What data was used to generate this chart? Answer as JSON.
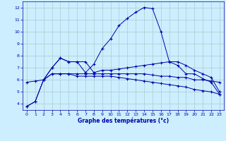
{
  "xlabel": "Graphe des températures (°c)",
  "xlim": [
    -0.5,
    23.5
  ],
  "ylim": [
    3.5,
    12.5
  ],
  "yticks": [
    4,
    5,
    6,
    7,
    8,
    9,
    10,
    11,
    12
  ],
  "xticks": [
    0,
    1,
    2,
    3,
    4,
    5,
    6,
    7,
    8,
    9,
    10,
    11,
    12,
    13,
    14,
    15,
    16,
    17,
    18,
    19,
    20,
    21,
    22,
    23
  ],
  "background_color": "#cceeff",
  "grid_color": "#aacccc",
  "line_color": "#0000aa",
  "curves": [
    {
      "x": [
        0,
        1,
        2,
        3,
        4,
        5,
        6,
        7,
        8,
        9,
        10,
        11,
        12,
        13,
        14,
        15,
        16,
        17,
        18,
        19,
        20,
        21,
        22,
        23
      ],
      "y": [
        3.8,
        4.2,
        6.0,
        7.0,
        7.8,
        7.5,
        7.5,
        6.6,
        7.3,
        8.6,
        9.4,
        10.5,
        11.1,
        11.6,
        12.0,
        11.9,
        10.0,
        7.5,
        7.2,
        6.5,
        6.5,
        6.1,
        5.8,
        4.8
      ]
    },
    {
      "x": [
        2,
        3,
        4,
        5,
        6,
        7,
        8,
        9,
        10,
        11,
        12,
        13,
        14,
        15,
        16,
        17,
        18,
        19,
        20,
        21,
        22,
        23
      ],
      "y": [
        6.0,
        7.0,
        7.8,
        7.5,
        7.5,
        7.5,
        6.6,
        6.8,
        6.8,
        6.9,
        7.0,
        7.1,
        7.2,
        7.3,
        7.4,
        7.5,
        7.5,
        7.2,
        6.8,
        6.5,
        6.2,
        5.0
      ]
    },
    {
      "x": [
        0,
        1,
        2,
        3,
        4,
        5,
        6,
        7,
        8,
        9,
        10,
        11,
        12,
        13,
        14,
        15,
        16,
        17,
        18,
        19,
        20,
        21,
        22,
        23
      ],
      "y": [
        5.8,
        5.9,
        6.0,
        6.5,
        6.5,
        6.5,
        6.5,
        6.5,
        6.5,
        6.5,
        6.5,
        6.5,
        6.5,
        6.5,
        6.5,
        6.4,
        6.3,
        6.3,
        6.2,
        6.2,
        6.0,
        6.0,
        5.9,
        5.8
      ]
    },
    {
      "x": [
        0,
        1,
        2,
        3,
        4,
        5,
        6,
        7,
        8,
        9,
        10,
        11,
        12,
        13,
        14,
        15,
        16,
        17,
        18,
        19,
        20,
        21,
        22,
        23
      ],
      "y": [
        3.8,
        4.2,
        6.0,
        6.5,
        6.5,
        6.5,
        6.3,
        6.3,
        6.3,
        6.3,
        6.3,
        6.2,
        6.1,
        6.0,
        5.9,
        5.8,
        5.7,
        5.6,
        5.5,
        5.4,
        5.2,
        5.1,
        5.0,
        4.8
      ]
    }
  ]
}
